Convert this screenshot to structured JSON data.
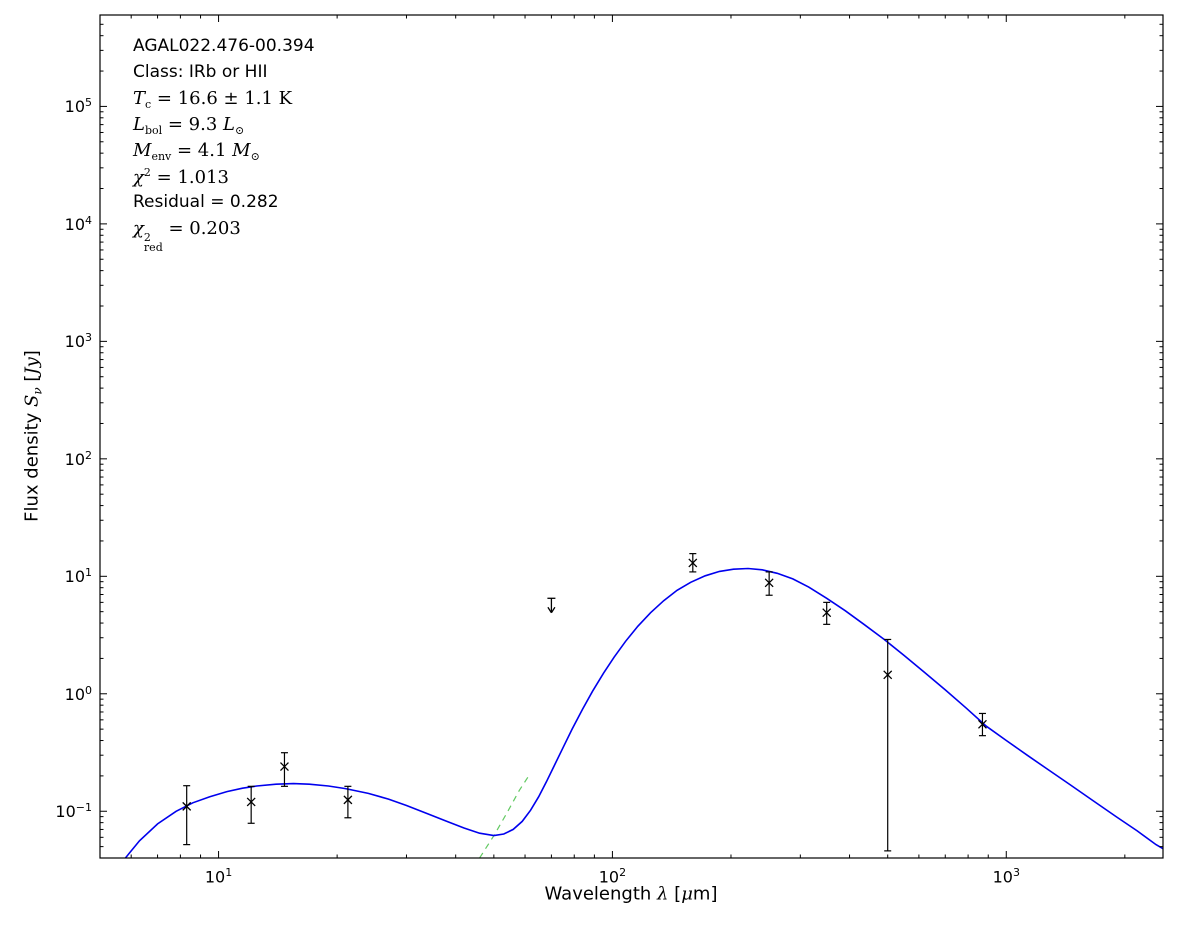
{
  "annotation": {
    "source": "AGAL022.476-00.394",
    "class_line": "Class: IRb or HII",
    "tc": {
      "var": "T",
      "sub": "c",
      "rest": " = 16.6 ± 1.1 K"
    },
    "lbol": {
      "var": "L",
      "sub": "bol",
      "mid": " = 9.3 ",
      "var2": "L",
      "sub2": "⊙"
    },
    "menv": {
      "var": "M",
      "sub": "env",
      "mid": " = 4.1 ",
      "var2": "M",
      "sub2": "⊙"
    },
    "chi2": {
      "var": "χ",
      "sup": "2",
      "rest": " = 1.013"
    },
    "residual": "Residual = 0.282",
    "chi2red": {
      "var": "χ",
      "sup": "2",
      "sub": "red",
      "rest": " = 0.203"
    }
  },
  "axes": {
    "xlabel": {
      "prefix": "Wavelength ",
      "lambda": "λ",
      "open": " [",
      "mu": "μ",
      "suffix": "m]"
    },
    "ylabel": {
      "prefix": "Flux density ",
      "S": "S",
      "nu": "ν",
      "open": " [",
      "unit": "Jy",
      "close": "]"
    }
  },
  "chart_data": {
    "type": "line",
    "title": "",
    "xlabel": "Wavelength λ [μm]",
    "ylabel": "Flux density S_ν [Jy]",
    "x_scale": "log",
    "y_scale": "log",
    "xlim": [
      5,
      2500
    ],
    "ylim": [
      0.04,
      600000
    ],
    "x_tick_exponents": [
      1,
      2,
      3
    ],
    "y_tick_exponents": [
      -1,
      0,
      1,
      2,
      3,
      4,
      5
    ],
    "grid": false,
    "legend": "none",
    "frame_color": "#000000",
    "series": [
      {
        "name": "cold-component-model",
        "color": "#62c962",
        "dash": "6,5",
        "width": 1.2,
        "points": [
          [
            46,
            0.04
          ],
          [
            50,
            0.062
          ],
          [
            54,
            0.097
          ],
          [
            58,
            0.15
          ],
          [
            61,
            0.195
          ]
        ]
      },
      {
        "name": "sed-model-total",
        "color": "#0000ee",
        "dash": null,
        "width": 1.6,
        "points": [
          [
            5.8,
            0.04
          ],
          [
            6.3,
            0.056
          ],
          [
            7,
            0.078
          ],
          [
            7.8,
            0.1
          ],
          [
            8.6,
            0.118
          ],
          [
            9.5,
            0.133
          ],
          [
            10.5,
            0.147
          ],
          [
            11.5,
            0.157
          ],
          [
            12.5,
            0.164
          ],
          [
            14,
            0.17
          ],
          [
            15.5,
            0.172
          ],
          [
            17,
            0.17
          ],
          [
            19,
            0.164
          ],
          [
            21,
            0.156
          ],
          [
            24,
            0.142
          ],
          [
            27,
            0.127
          ],
          [
            30,
            0.112
          ],
          [
            34,
            0.095
          ],
          [
            38,
            0.082
          ],
          [
            42,
            0.072
          ],
          [
            46,
            0.065
          ],
          [
            50,
            0.062
          ],
          [
            53,
            0.064
          ],
          [
            56,
            0.07
          ],
          [
            59,
            0.082
          ],
          [
            62,
            0.102
          ],
          [
            65,
            0.133
          ],
          [
            68,
            0.178
          ],
          [
            71,
            0.24
          ],
          [
            75,
            0.35
          ],
          [
            79,
            0.5
          ],
          [
            84,
            0.74
          ],
          [
            89,
            1.05
          ],
          [
            95,
            1.5
          ],
          [
            101,
            2.05
          ],
          [
            108,
            2.8
          ],
          [
            116,
            3.75
          ],
          [
            125,
            4.9
          ],
          [
            135,
            6.2
          ],
          [
            146,
            7.6
          ],
          [
            158,
            8.9
          ],
          [
            172,
            10.1
          ],
          [
            187,
            11
          ],
          [
            203,
            11.5
          ],
          [
            221,
            11.65
          ],
          [
            240,
            11.35
          ],
          [
            262,
            10.6
          ],
          [
            287,
            9.5
          ],
          [
            315,
            8.1
          ],
          [
            350,
            6.5
          ],
          [
            390,
            5.1
          ],
          [
            435,
            3.9
          ],
          [
            490,
            2.9
          ],
          [
            550,
            2.12
          ],
          [
            620,
            1.52
          ],
          [
            700,
            1.08
          ],
          [
            790,
            0.76
          ],
          [
            890,
            0.53
          ],
          [
            1000,
            0.4
          ],
          [
            1130,
            0.3
          ],
          [
            1280,
            0.225
          ],
          [
            1450,
            0.169
          ],
          [
            1650,
            0.125
          ],
          [
            1900,
            0.09
          ],
          [
            2150,
            0.068
          ],
          [
            2400,
            0.052
          ],
          [
            2500,
            0.048
          ]
        ]
      }
    ],
    "photometry": {
      "marker": "x",
      "color": "#000000",
      "points": [
        {
          "x": 8.3,
          "y": 0.11,
          "ylo": 0.052,
          "yhi": 0.165
        },
        {
          "x": 12.1,
          "y": 0.12,
          "ylo": 0.079,
          "yhi": 0.163
        },
        {
          "x": 14.7,
          "y": 0.24,
          "ylo": 0.163,
          "yhi": 0.315
        },
        {
          "x": 21.3,
          "y": 0.125,
          "ylo": 0.088,
          "yhi": 0.163
        },
        {
          "x": 160,
          "y": 13.0,
          "ylo": 10.9,
          "yhi": 15.6
        },
        {
          "x": 250,
          "y": 8.8,
          "ylo": 6.9,
          "yhi": 10.9
        },
        {
          "x": 350,
          "y": 4.9,
          "ylo": 3.9,
          "yhi": 6.0
        },
        {
          "x": 500,
          "y": 1.45,
          "ylo": 0.046,
          "yhi": 2.9
        },
        {
          "x": 870,
          "y": 0.55,
          "ylo": 0.44,
          "yhi": 0.68
        }
      ]
    },
    "upper_limits": {
      "color": "#000000",
      "points": [
        {
          "x": 70,
          "y": 6.5
        }
      ]
    }
  }
}
